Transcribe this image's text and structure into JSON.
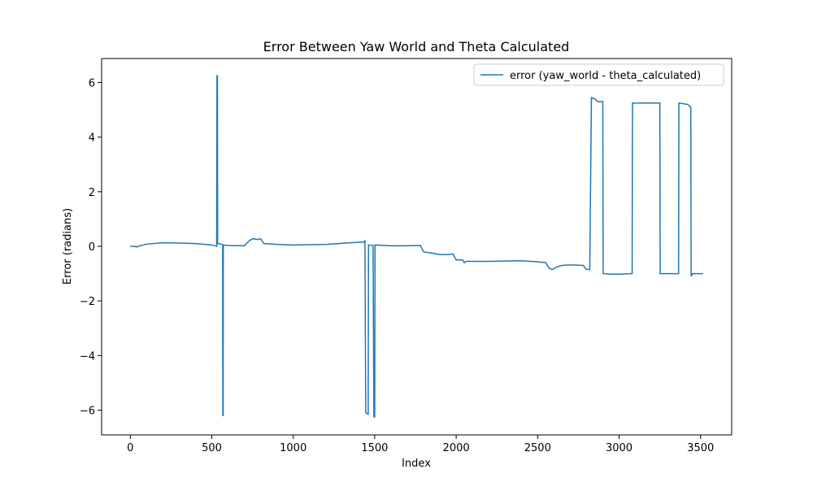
{
  "chart_data": {
    "type": "line",
    "title": "Error Between Yaw World and Theta Calculated",
    "x_label": "Index",
    "y_label": "Error (radians)",
    "x": [
      0,
      20,
      40,
      60,
      100,
      200,
      300,
      400,
      500,
      520,
      530,
      532,
      535,
      536,
      560,
      567,
      568,
      570,
      571,
      600,
      700,
      730,
      750,
      780,
      800,
      820,
      900,
      1000,
      1200,
      1400,
      1430,
      1440,
      1445,
      1460,
      1462,
      1490,
      1495,
      1500,
      1502,
      1600,
      1700,
      1780,
      1800,
      1850,
      1900,
      1950,
      1980,
      2000,
      2040,
      2050,
      2060,
      2200,
      2400,
      2500,
      2550,
      2570,
      2590,
      2620,
      2650,
      2700,
      2780,
      2800,
      2820,
      2830,
      2850,
      2870,
      2900,
      2902,
      2950,
      3000,
      3080,
      3082,
      3200,
      3250,
      3252,
      3300,
      3365,
      3367,
      3420,
      3440,
      3442,
      3450,
      3515
    ],
    "series": [
      {
        "name": "error (yaw_world - theta_calculated)",
        "color": "#1f77b4",
        "values": [
          0,
          0,
          -0.02,
          0.02,
          0.08,
          0.13,
          0.12,
          0.1,
          0.05,
          0.02,
          0,
          6.25,
          6.25,
          0.1,
          0.08,
          0.05,
          -6.2,
          -6.2,
          0.05,
          0.03,
          0.02,
          0.2,
          0.28,
          0.25,
          0.28,
          0.1,
          0.07,
          0.05,
          0.07,
          0.15,
          0.15,
          0.2,
          -6.1,
          -6.15,
          0.05,
          0.03,
          -6.25,
          -6.25,
          0.05,
          0.02,
          0.02,
          0.03,
          -0.2,
          -0.25,
          -0.3,
          -0.3,
          -0.28,
          -0.5,
          -0.5,
          -0.6,
          -0.55,
          -0.55,
          -0.53,
          -0.57,
          -0.6,
          -0.8,
          -0.85,
          -0.75,
          -0.7,
          -0.68,
          -0.7,
          -0.85,
          -0.85,
          5.45,
          5.4,
          5.3,
          5.3,
          -1.0,
          -1.02,
          -1.02,
          -1.0,
          5.25,
          5.25,
          5.25,
          -1.0,
          -1.0,
          -1.0,
          5.25,
          5.2,
          5.1,
          -1.1,
          -1.0,
          -1.0
        ]
      }
    ],
    "xlim": [
      -176,
      3691
    ],
    "ylim": [
      -6.91,
      6.88
    ],
    "xticks": [
      0,
      500,
      1000,
      1500,
      2000,
      2500,
      3000,
      3500
    ],
    "yticks": [
      {
        "value": -6,
        "label": "−6"
      },
      {
        "value": -4,
        "label": "−4"
      },
      {
        "value": -2,
        "label": "−2"
      },
      0,
      2,
      4,
      6
    ],
    "legend": "upper right"
  }
}
